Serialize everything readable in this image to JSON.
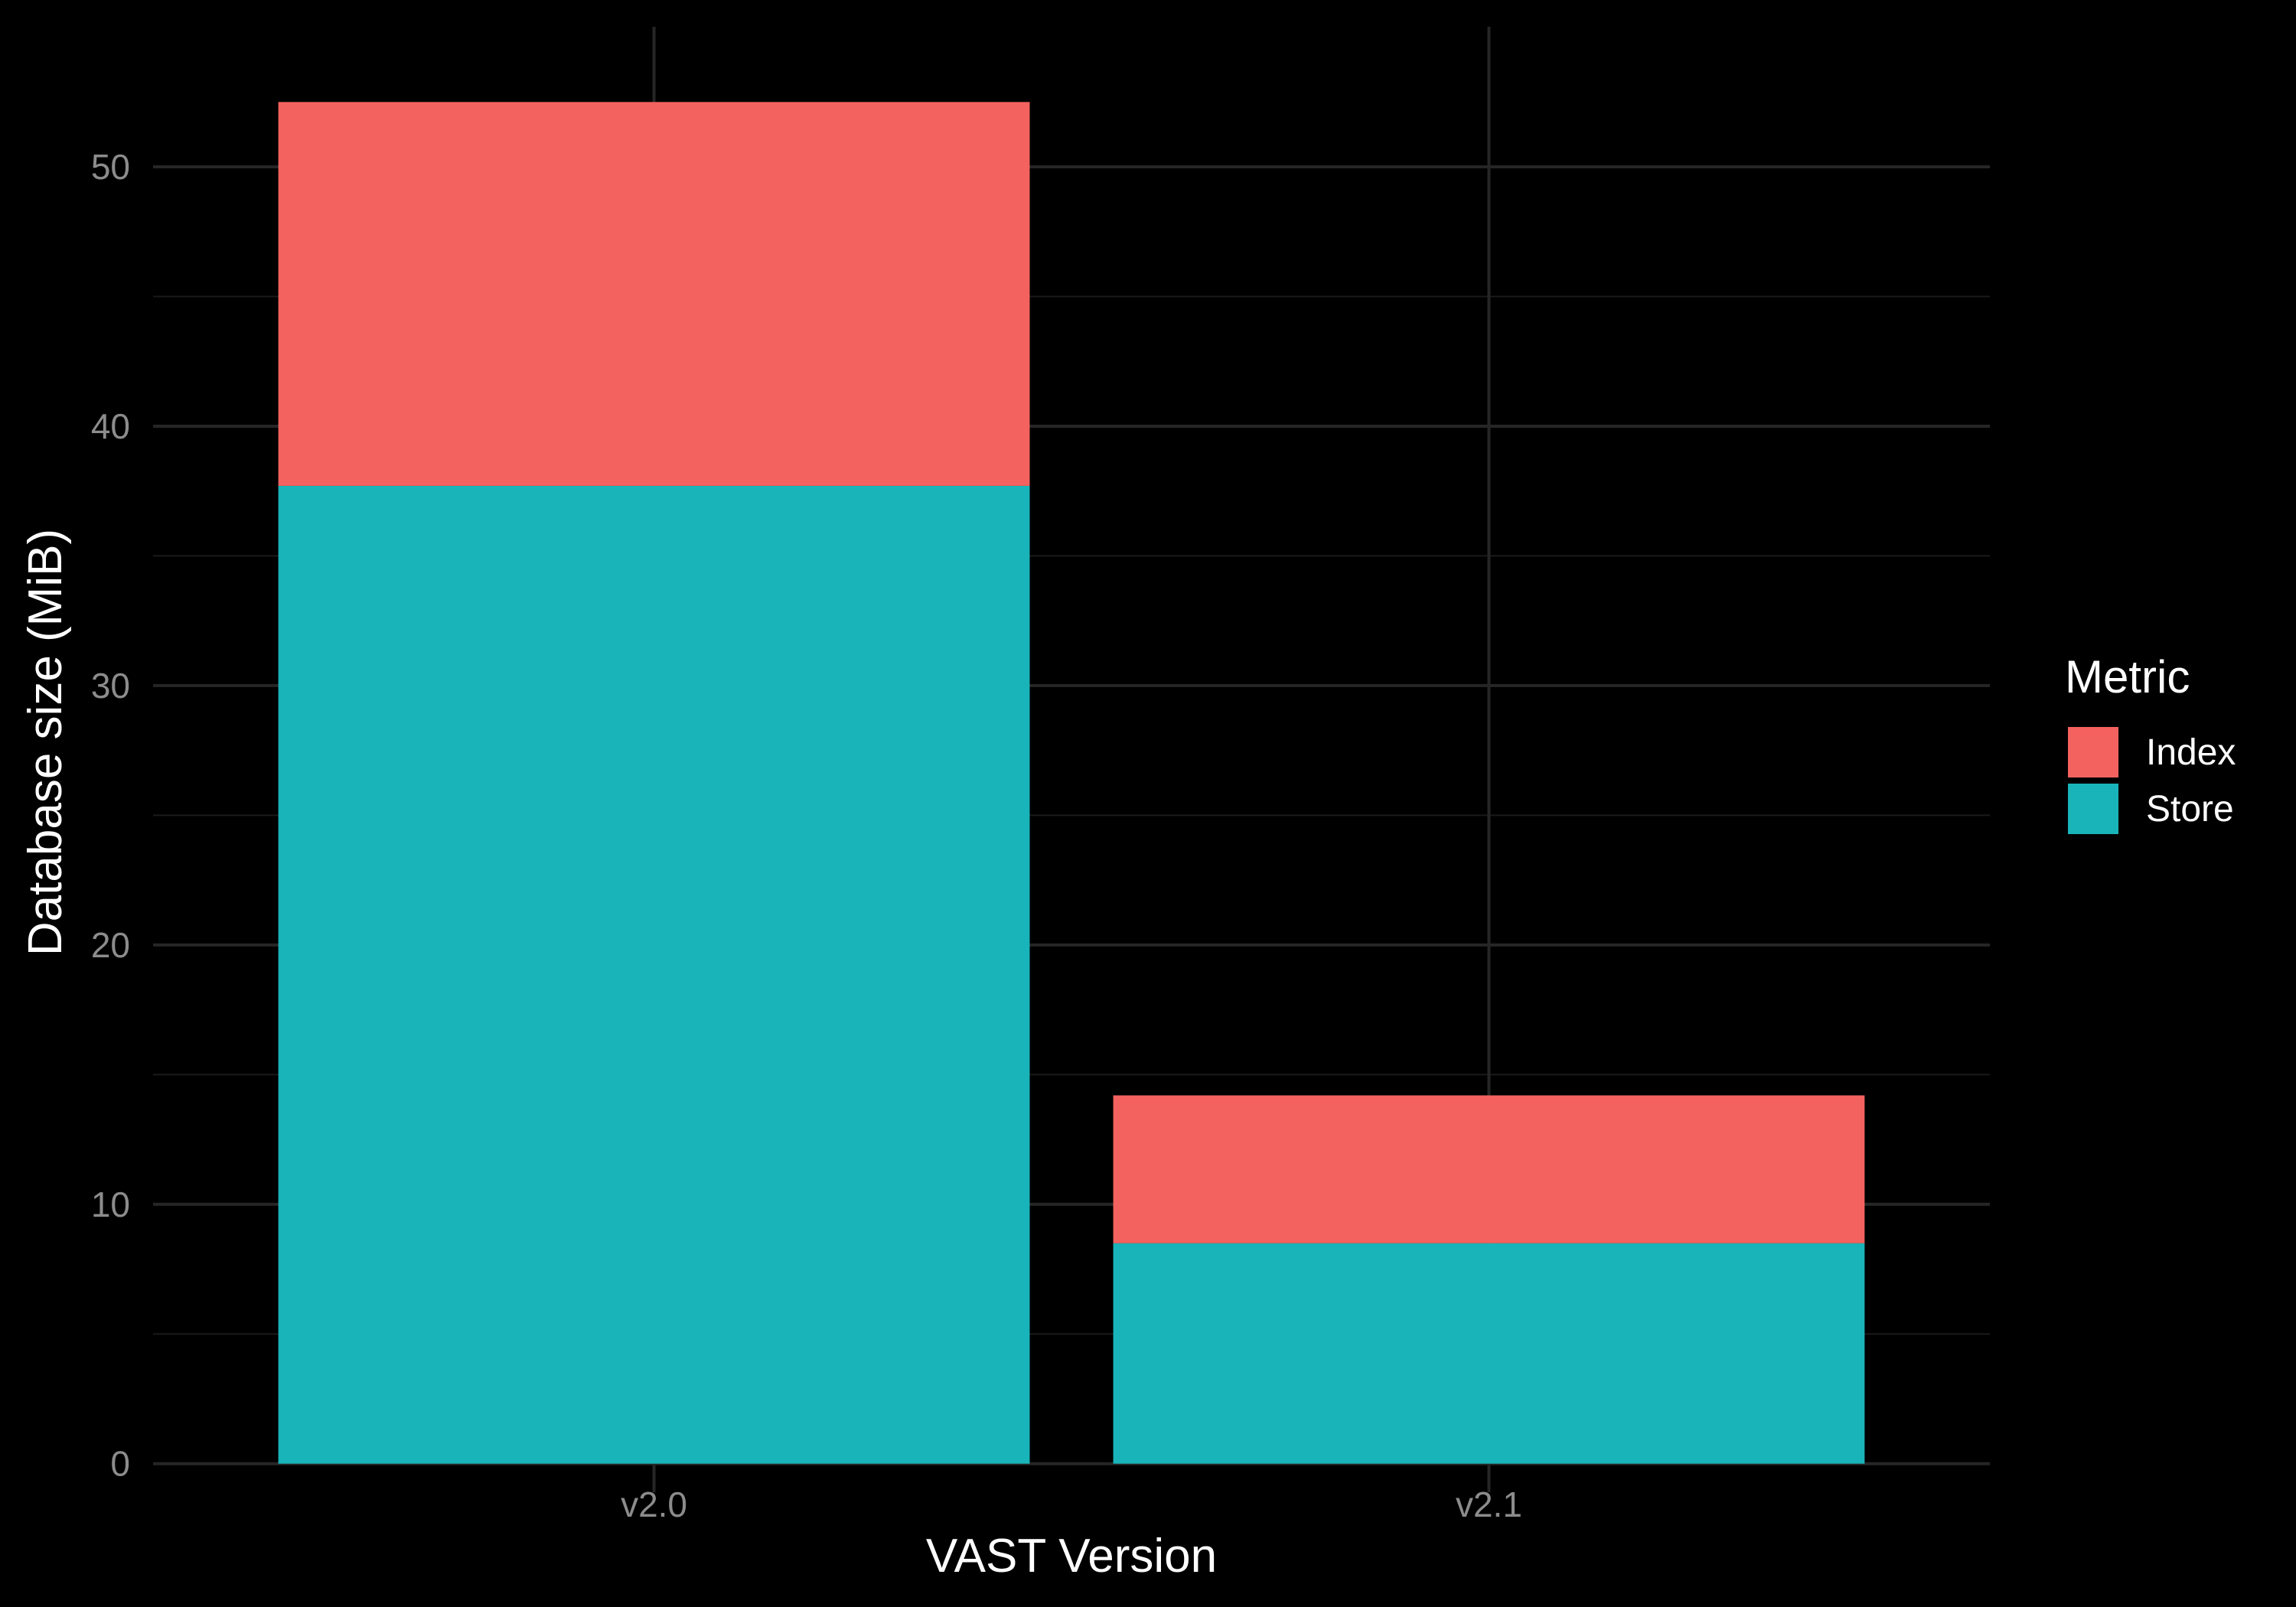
{
  "chart_data": {
    "type": "bar",
    "stacked": true,
    "title": "",
    "xlabel": "VAST Version",
    "ylabel": "Database size (MiB)",
    "categories": [
      "v2.0",
      "v2.1"
    ],
    "ylim": [
      -1.1,
      55.4
    ],
    "yticks": [
      0,
      10,
      20,
      30,
      40,
      50
    ],
    "grid": true,
    "legend": {
      "title": "Metric",
      "placement": "right",
      "entries": [
        "Index",
        "Store"
      ]
    },
    "series": [
      {
        "name": "Store",
        "values": [
          37.7,
          8.5
        ],
        "color": "#19b4b9"
      },
      {
        "name": "Index",
        "values": [
          14.8,
          5.7
        ],
        "color": "#f4625f"
      }
    ],
    "background": "#000000"
  }
}
